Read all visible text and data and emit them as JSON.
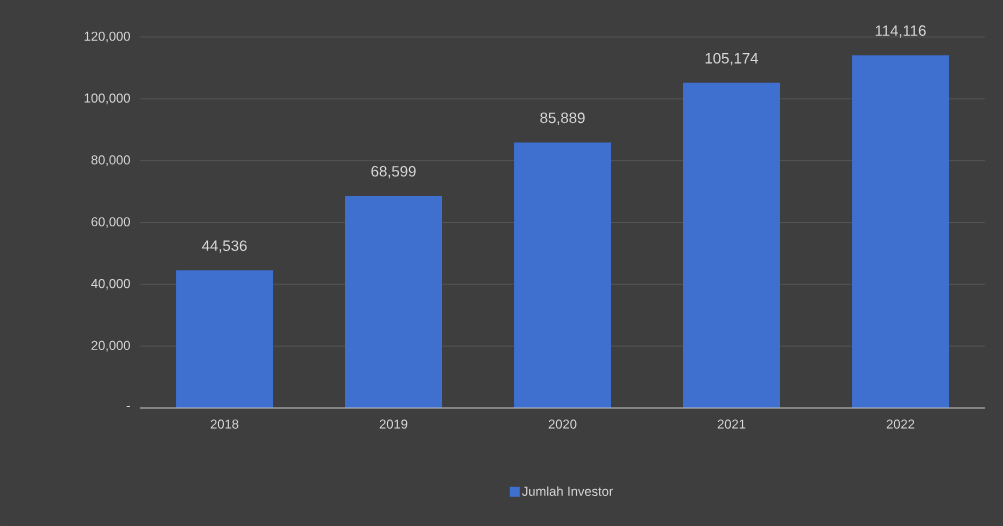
{
  "chart_data": {
    "type": "bar",
    "categories": [
      "2018",
      "2019",
      "2020",
      "2021",
      "2022"
    ],
    "series": [
      {
        "name": "Jumlah Investor",
        "color": "#3f6fcf",
        "values": [
          44536,
          68599,
          85889,
          105174,
          114116
        ],
        "value_labels": [
          "44,536",
          "68,599",
          "85,889",
          "105,174",
          "114,116"
        ]
      }
    ],
    "ylim": [
      0,
      120000
    ],
    "yticks": [
      {
        "value": 0,
        "label": "-"
      },
      {
        "value": 20000,
        "label": "20,000"
      },
      {
        "value": 40000,
        "label": "40,000"
      },
      {
        "value": 60000,
        "label": "60,000"
      },
      {
        "value": 80000,
        "label": "80,000"
      },
      {
        "value": 100000,
        "label": "100,000"
      },
      {
        "value": 120000,
        "label": "120,000"
      }
    ],
    "grid": "y",
    "legend": "bottom"
  }
}
